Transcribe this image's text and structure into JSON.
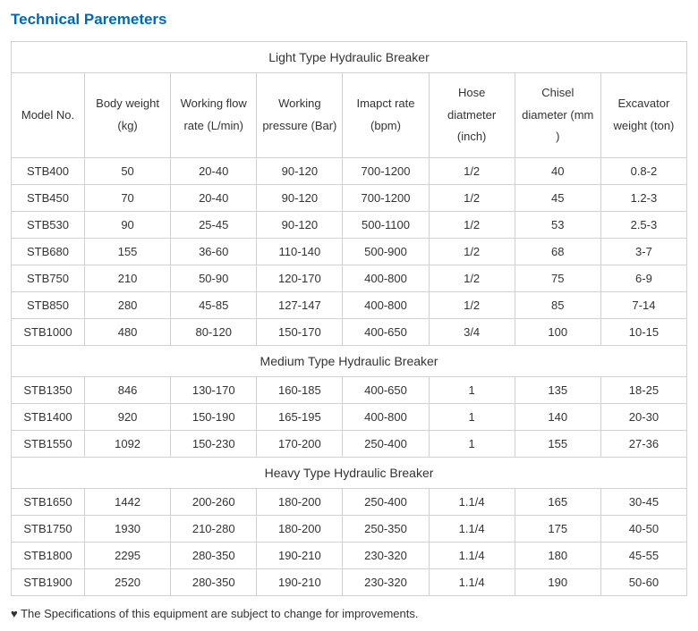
{
  "title": "Technical Paremeters",
  "columns": [
    "Model No.",
    "Body weight (kg)",
    "Working flow rate (L/min)",
    "Working pressure (Bar)",
    "Imapct rate (bpm)",
    "Hose diatmeter (inch)",
    "Chisel diameter (mm )",
    "Excavator weight (ton)"
  ],
  "sections": [
    {
      "title": "Light Type Hydraulic Breaker",
      "rows": [
        [
          "STB400",
          "50",
          "20-40",
          "90-120",
          "700-1200",
          "1/2",
          "40",
          "0.8-2"
        ],
        [
          "STB450",
          "70",
          "20-40",
          "90-120",
          "700-1200",
          "1/2",
          "45",
          "1.2-3"
        ],
        [
          "STB530",
          "90",
          "25-45",
          "90-120",
          "500-1100",
          "1/2",
          "53",
          "2.5-3"
        ],
        [
          "STB680",
          "155",
          "36-60",
          "110-140",
          "500-900",
          "1/2",
          "68",
          "3-7"
        ],
        [
          "STB750",
          "210",
          "50-90",
          "120-170",
          "400-800",
          "1/2",
          "75",
          "6-9"
        ],
        [
          "STB850",
          "280",
          "45-85",
          "127-147",
          "400-800",
          "1/2",
          "85",
          "7-14"
        ],
        [
          "STB1000",
          "480",
          "80-120",
          "150-170",
          "400-650",
          "3/4",
          "100",
          "10-15"
        ]
      ]
    },
    {
      "title": "Medium Type Hydraulic Breaker",
      "rows": [
        [
          "STB1350",
          "846",
          "130-170",
          "160-185",
          "400-650",
          "1",
          "135",
          "18-25"
        ],
        [
          "STB1400",
          "920",
          "150-190",
          "165-195",
          "400-800",
          "1",
          "140",
          "20-30"
        ],
        [
          "STB1550",
          "1092",
          "150-230",
          "170-200",
          "250-400",
          "1",
          "155",
          "27-36"
        ]
      ]
    },
    {
      "title": "Heavy Type Hydraulic Breaker",
      "rows": [
        [
          "STB1650",
          "1442",
          "200-260",
          "180-200",
          "250-400",
          "1.1/4",
          "165",
          "30-45"
        ],
        [
          "STB1750",
          "1930",
          "210-280",
          "180-200",
          "250-350",
          "1.1/4",
          "175",
          "40-50"
        ],
        [
          "STB1800",
          "2295",
          "280-350",
          "190-210",
          "230-320",
          "1.1/4",
          "180",
          "45-55"
        ],
        [
          "STB1900",
          "2520",
          "280-350",
          "190-210",
          "230-320",
          "1.1/4",
          "190",
          "50-60"
        ]
      ]
    }
  ],
  "footnote": "♥ The Specifications of this equipment are subject to change for improvements."
}
